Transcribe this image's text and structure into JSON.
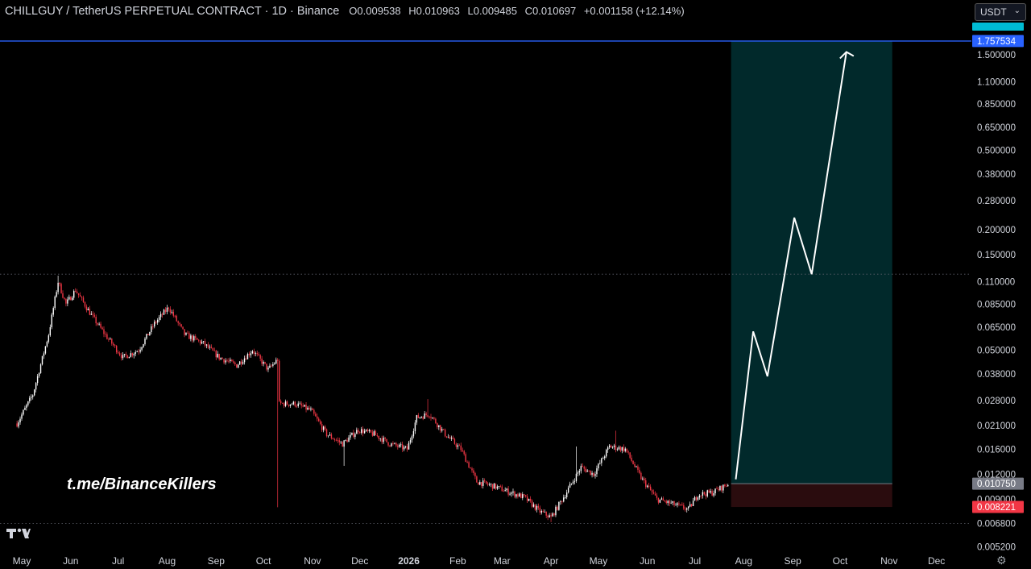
{
  "header": {
    "symbol": "CHILLGUY / TetherUS PERPETUAL CONTRACT · 1D · Binance",
    "open": "O0.009538",
    "high": "H0.010963",
    "low": "L0.009485",
    "close": "C0.010697",
    "change": "+0.001158 (+12.14%)"
  },
  "currency_selector": {
    "value": "USDT"
  },
  "watermark": "t.me/BinanceKillers",
  "chart_data": {
    "type": "candlestick",
    "y_scale": "log",
    "y_ticks": [
      "1.500000",
      "1.100000",
      "0.850000",
      "0.650000",
      "0.500000",
      "0.380000",
      "0.280000",
      "0.200000",
      "0.150000",
      "0.110000",
      "0.085000",
      "0.065000",
      "0.050000",
      "0.038000",
      "0.028000",
      "0.021000",
      "0.016000",
      "0.012000",
      "0.009000",
      "0.006800",
      "0.005200"
    ],
    "x_ticks": [
      "May",
      "Jun",
      "Jul",
      "Aug",
      "Sep",
      "Oct",
      "Nov",
      "Dec",
      "2026",
      "Feb",
      "Mar",
      "Apr",
      "May",
      "Jun",
      "Jul",
      "Aug",
      "Sep",
      "Oct",
      "Nov",
      "Dec"
    ],
    "price_path": [
      {
        "date": "2025-04-28",
        "price": 0.0215
      },
      {
        "date": "2025-05-08",
        "price": 0.03
      },
      {
        "date": "2025-05-18",
        "price": 0.06
      },
      {
        "date": "2025-05-24",
        "price": 0.11
      },
      {
        "date": "2025-05-29",
        "price": 0.085
      },
      {
        "date": "2025-06-04",
        "price": 0.1
      },
      {
        "date": "2025-06-14",
        "price": 0.075
      },
      {
        "date": "2025-06-24",
        "price": 0.058
      },
      {
        "date": "2025-07-04",
        "price": 0.046
      },
      {
        "date": "2025-07-14",
        "price": 0.05
      },
      {
        "date": "2025-07-24",
        "price": 0.068
      },
      {
        "date": "2025-08-02",
        "price": 0.082
      },
      {
        "date": "2025-08-12",
        "price": 0.06
      },
      {
        "date": "2025-08-24",
        "price": 0.054
      },
      {
        "date": "2025-09-03",
        "price": 0.046
      },
      {
        "date": "2025-09-14",
        "price": 0.042
      },
      {
        "date": "2025-09-24",
        "price": 0.05
      },
      {
        "date": "2025-10-04",
        "price": 0.04
      },
      {
        "date": "2025-10-10",
        "price": 0.045
      },
      {
        "date": "2025-10-11",
        "price": 0.027
      },
      {
        "date": "2025-10-21",
        "price": 0.027
      },
      {
        "date": "2025-10-31",
        "price": 0.025
      },
      {
        "date": "2025-11-10",
        "price": 0.019
      },
      {
        "date": "2025-11-20",
        "price": 0.017
      },
      {
        "date": "2025-11-30",
        "price": 0.02
      },
      {
        "date": "2025-12-10",
        "price": 0.019
      },
      {
        "date": "2025-12-20",
        "price": 0.017
      },
      {
        "date": "2025-12-31",
        "price": 0.016
      },
      {
        "date": "2026-01-06",
        "price": 0.023
      },
      {
        "date": "2026-01-14",
        "price": 0.024
      },
      {
        "date": "2026-01-24",
        "price": 0.019
      },
      {
        "date": "2026-02-03",
        "price": 0.016
      },
      {
        "date": "2026-02-13",
        "price": 0.011
      },
      {
        "date": "2026-02-23",
        "price": 0.0105
      },
      {
        "date": "2026-03-05",
        "price": 0.0098
      },
      {
        "date": "2026-03-15",
        "price": 0.0092
      },
      {
        "date": "2026-03-25",
        "price": 0.0078
      },
      {
        "date": "2026-04-01",
        "price": 0.0073
      },
      {
        "date": "2026-04-10",
        "price": 0.0095
      },
      {
        "date": "2026-04-20",
        "price": 0.013
      },
      {
        "date": "2026-04-28",
        "price": 0.012
      },
      {
        "date": "2026-05-08",
        "price": 0.0165
      },
      {
        "date": "2026-05-18",
        "price": 0.016
      },
      {
        "date": "2026-05-28",
        "price": 0.0115
      },
      {
        "date": "2026-06-07",
        "price": 0.009
      },
      {
        "date": "2026-06-17",
        "price": 0.0085
      },
      {
        "date": "2026-06-27",
        "price": 0.008
      },
      {
        "date": "2026-07-03",
        "price": 0.0095
      },
      {
        "date": "2026-07-12",
        "price": 0.0097
      },
      {
        "date": "2026-07-22",
        "price": 0.0107
      }
    ],
    "wicks": [
      {
        "date": "2025-05-24",
        "high": 0.118
      },
      {
        "date": "2025-10-10",
        "low": 0.0082
      },
      {
        "date": "2025-11-21",
        "low": 0.0132
      },
      {
        "date": "2026-01-13",
        "high": 0.0285
      },
      {
        "date": "2026-04-01",
        "low": 0.0069
      },
      {
        "date": "2026-04-17",
        "high": 0.0165
      },
      {
        "date": "2026-05-12",
        "high": 0.0198
      }
    ],
    "position": {
      "start": "2026-07-24",
      "end": "2026-11-03",
      "target": 1.757534,
      "entry": 0.01075,
      "stop": 0.008221
    },
    "projection": [
      {
        "date": "2026-07-27",
        "price": 0.0113
      },
      {
        "date": "2026-08-07",
        "price": 0.062
      },
      {
        "date": "2026-08-16",
        "price": 0.037
      },
      {
        "date": "2026-09-02",
        "price": 0.23
      },
      {
        "date": "2026-09-13",
        "price": 0.12
      },
      {
        "date": "2026-10-05",
        "price": 1.55
      }
    ],
    "horizontal_levels": [
      {
        "price": 0.12,
        "style": "dotted"
      },
      {
        "price": 0.0068,
        "style": "dotted"
      }
    ],
    "price_labels": [
      {
        "text": "1.757534",
        "color": "#2962ff"
      },
      {
        "text": "0.010750",
        "color": "#787b86"
      },
      {
        "text": "0.008221",
        "color": "#f23645"
      }
    ],
    "colors": {
      "up": "#ffffff",
      "down": "#f23645",
      "target_zone": "#01292b",
      "stop_zone": "#2a0c0e",
      "target_line": "#2962ff"
    }
  }
}
